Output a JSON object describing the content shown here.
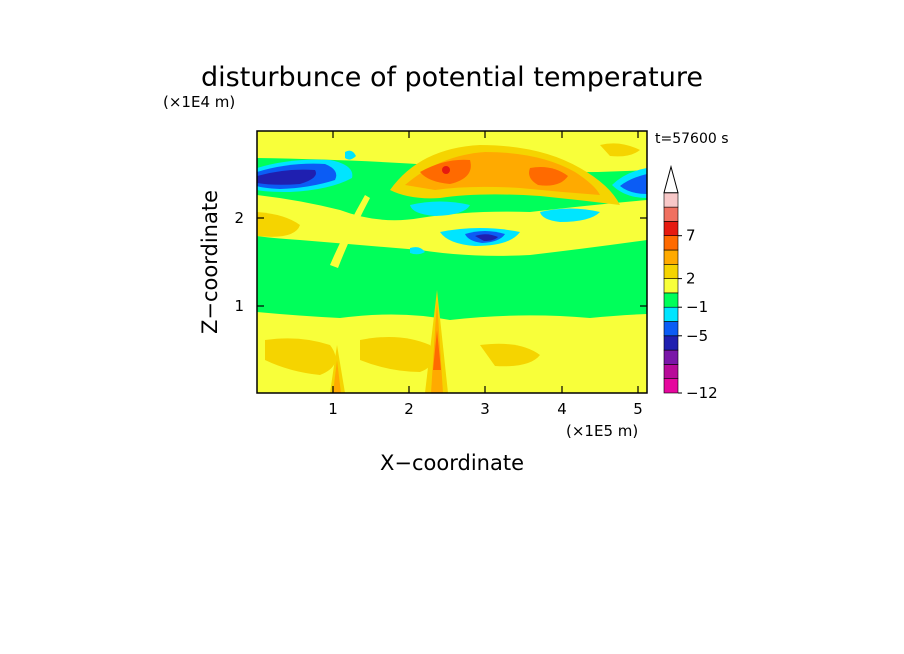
{
  "chart_data": {
    "type": "heatmap",
    "title": "disturbunce of potential temperature",
    "time_label": "t=57600 s",
    "xlabel": "X−coordinate",
    "ylabel": "Z−coordinate",
    "x_scale_label": "(×1E5 m)",
    "y_scale_label": "(×1E4 m)",
    "x_ticks": [
      "1",
      "2",
      "3",
      "4",
      "5"
    ],
    "y_ticks": [
      "1",
      "2"
    ],
    "xlim": [
      0,
      5.12
    ],
    "ylim": [
      0,
      2.93
    ],
    "colorbar": {
      "labels": [
        "−12",
        "−5",
        "−1",
        "2",
        "7"
      ],
      "colors": [
        "#e6079e",
        "#b80a99",
        "#7a16a8",
        "#1f1fb0",
        "#0b5cf5",
        "#00e5ff",
        "#00ff5a",
        "#f8ff3a",
        "#f5d400",
        "#ffaa00",
        "#ff6a00",
        "#e61a10",
        "#f07060",
        "#f8c8c8"
      ],
      "extend": "max"
    }
  }
}
